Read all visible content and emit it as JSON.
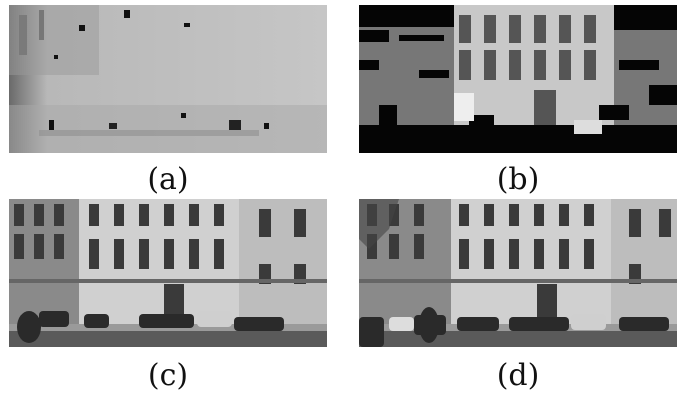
{
  "figure": {
    "panels": [
      {
        "caption": "(a)",
        "content": "depth-map"
      },
      {
        "caption": "(b)",
        "content": "sparse-reconstruction"
      },
      {
        "caption": "(c)",
        "content": "street-frame"
      },
      {
        "caption": "(d)",
        "content": "street-frame-with-pedestrian"
      }
    ]
  }
}
